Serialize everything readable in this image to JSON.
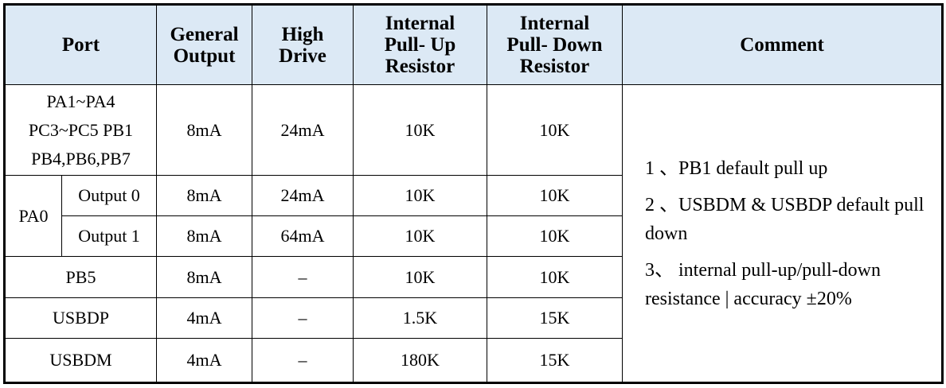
{
  "header": {
    "port": "Port",
    "general_output": [
      "General",
      "Output"
    ],
    "high_drive": [
      "High",
      "Drive"
    ],
    "pull_up": [
      "Internal",
      "Pull- Up",
      "Resistor"
    ],
    "pull_down": [
      "Internal",
      "Pull- Down",
      "Resistor"
    ],
    "comment": "Comment"
  },
  "rows": [
    {
      "port": [
        "PA1~PA4",
        "PC3~PC5 PB1",
        "PB4,PB6,PB7"
      ],
      "general": "8mA",
      "high": "24mA",
      "pull_up": "10K",
      "pull_down": "10K"
    },
    {
      "port": "PA0",
      "sub": "Output 0",
      "general": "8mA",
      "high": "24mA",
      "pull_up": "10K",
      "pull_down": "10K"
    },
    {
      "sub": "Output 1",
      "general": "8mA",
      "high": "64mA",
      "pull_up": "10K",
      "pull_down": "10K"
    },
    {
      "port": "PB5",
      "general": "8mA",
      "high": "–",
      "pull_up": "10K",
      "pull_down": "10K"
    },
    {
      "port": "USBDP",
      "general": "4mA",
      "high": "–",
      "pull_up": "1.5K",
      "pull_down": "15K"
    },
    {
      "port": "USBDM",
      "general": "4mA",
      "high": "–",
      "pull_up": "180K",
      "pull_down": "15K"
    }
  ],
  "comments": [
    "1 、PB1 default pull up",
    "2 、USBDM & USBDP default pull down",
    "3、 internal pull-up/pull-down resistance | accuracy ±20%"
  ],
  "colors": {
    "header_bg": "#dce9f5"
  }
}
